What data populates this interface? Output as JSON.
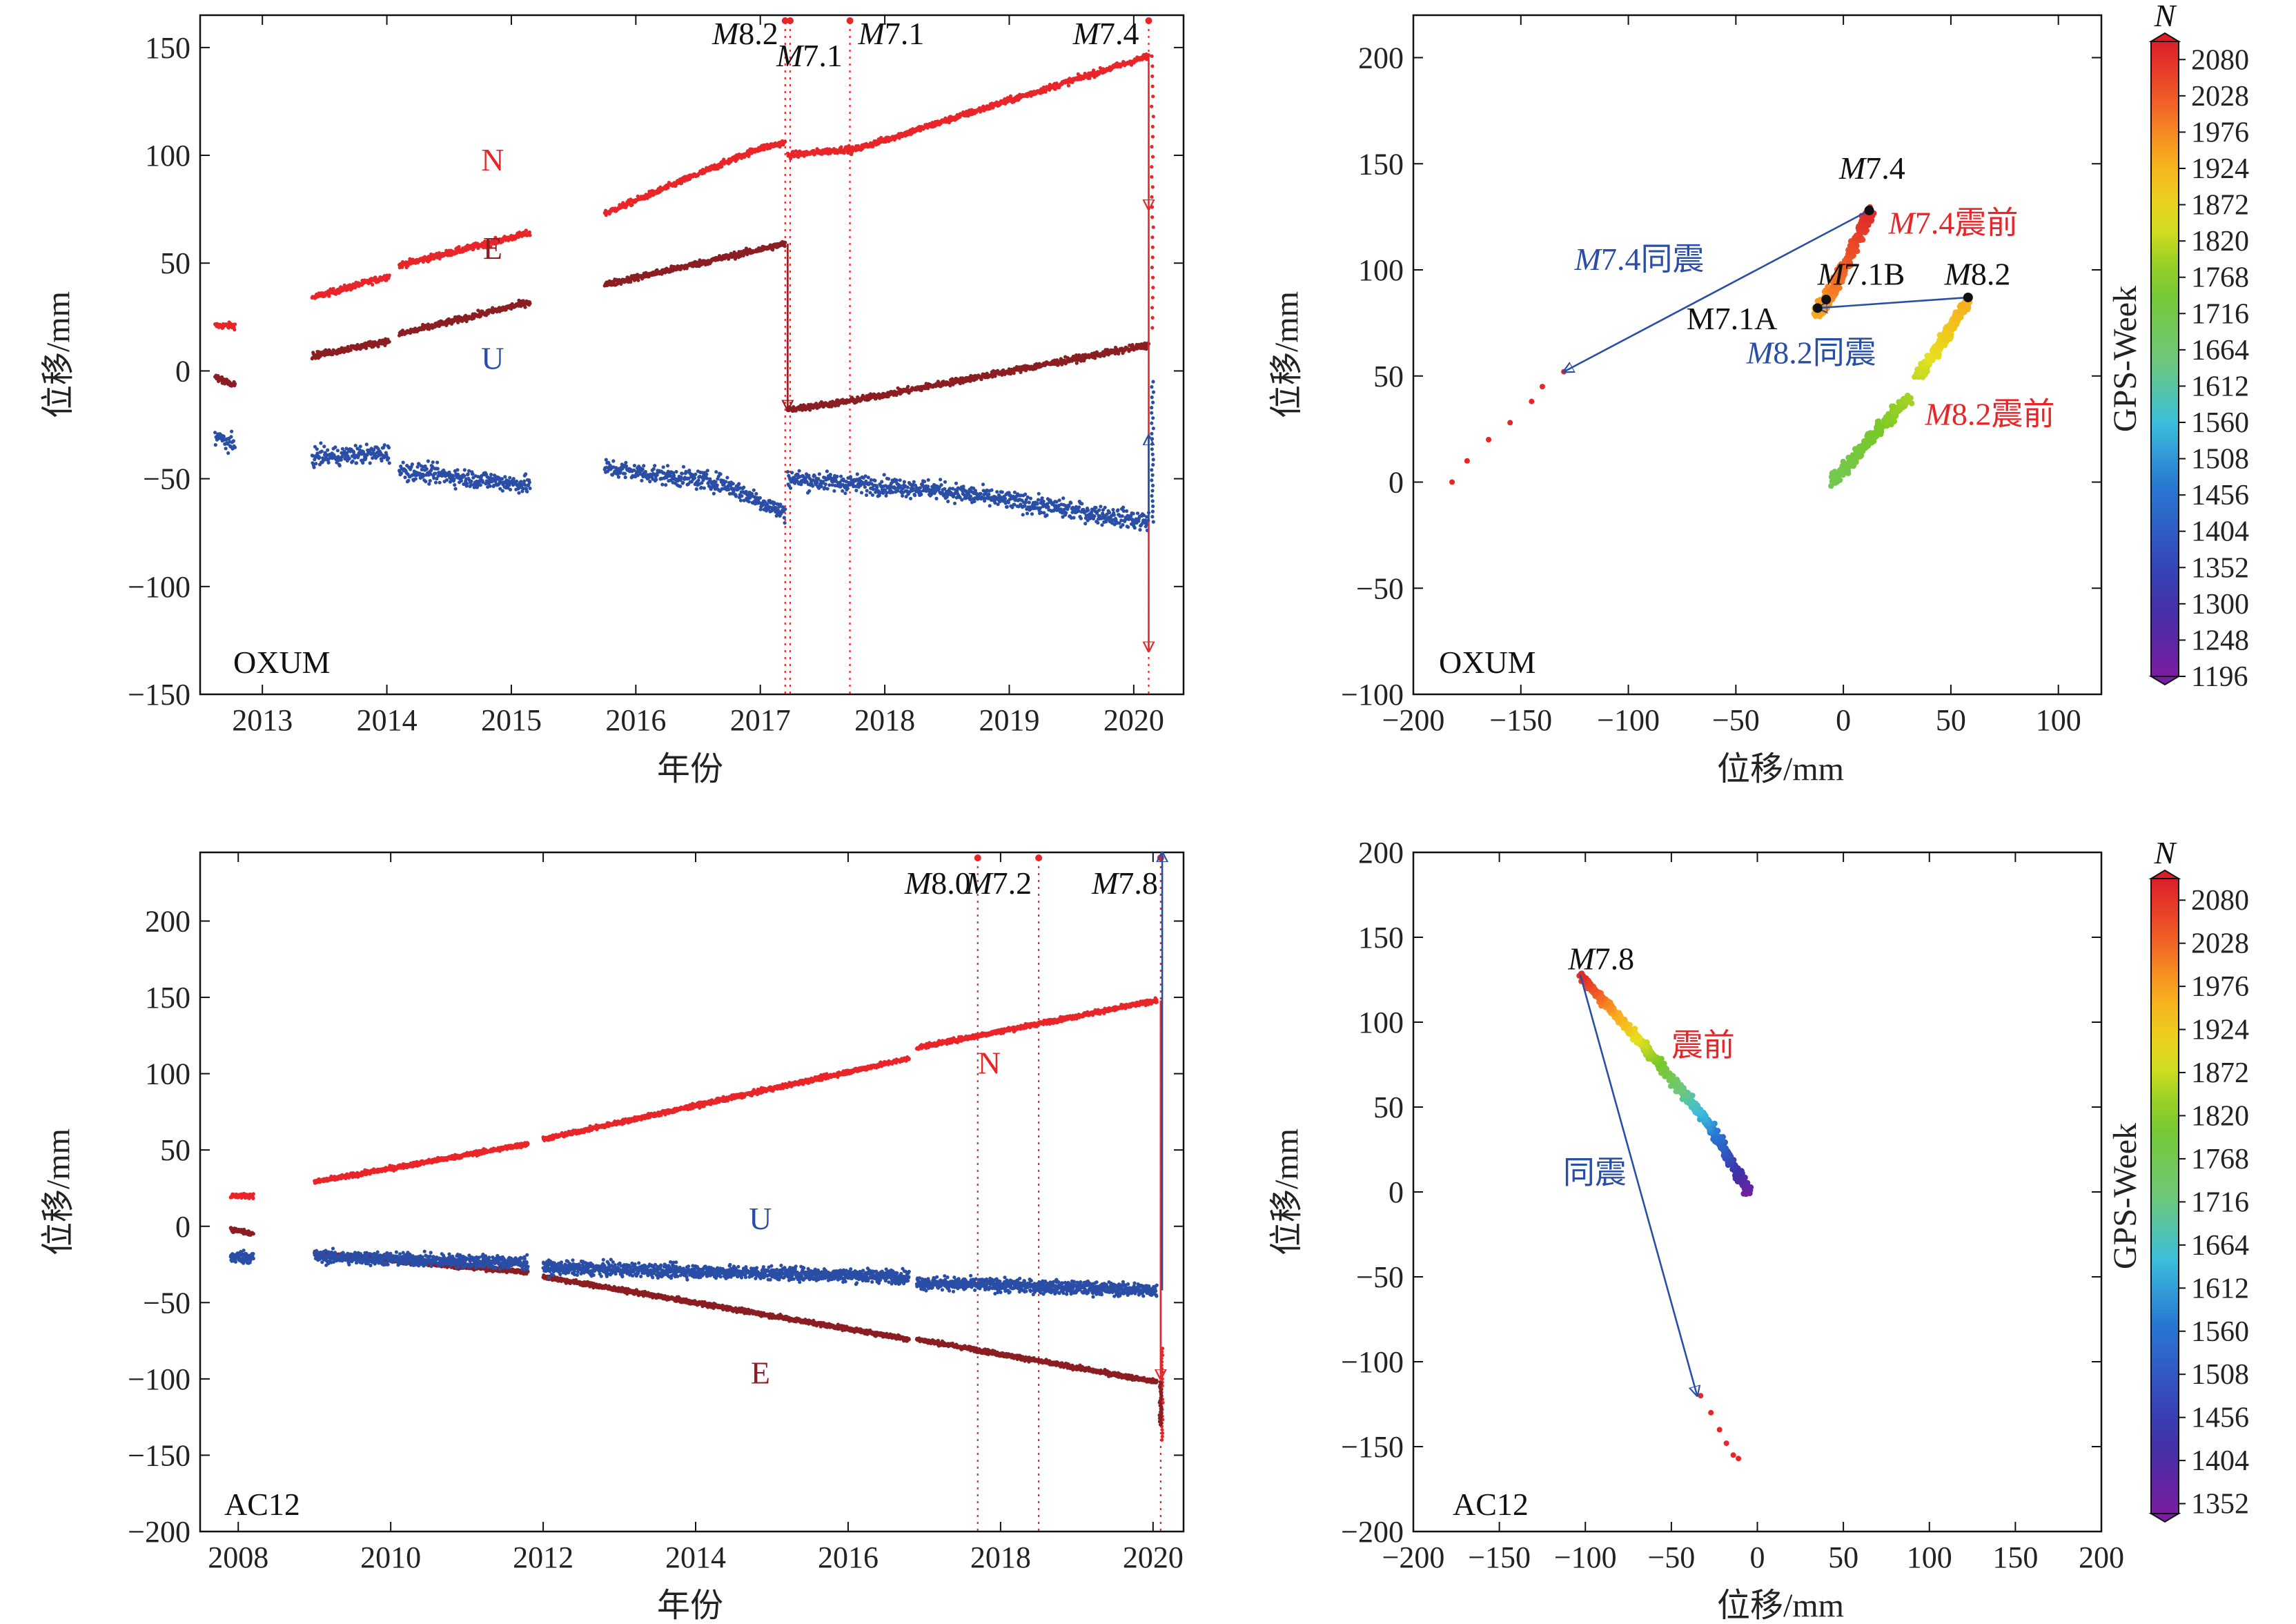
{
  "colors": {
    "N": "#e8262a",
    "E": "#8b1e22",
    "U": "#2a4ea6",
    "anno_black": "#111111",
    "anno_red": "#e8262a",
    "anno_blue": "#2a4ea6"
  },
  "chart_data": [
    {
      "id": "oxum-ts",
      "type": "scatter",
      "station": "OXUM",
      "xlabel": "年份",
      "ylabel": "位移/mm",
      "xlim": [
        2012.5,
        2020.4
      ],
      "ylim": [
        -150,
        165
      ],
      "xticks": [
        2013,
        2014,
        2015,
        2016,
        2017,
        2018,
        2019,
        2020
      ],
      "yticks": [
        -150,
        -100,
        -50,
        0,
        50,
        100,
        150
      ],
      "ytick_labels": [
        "−150",
        "−100",
        "−50",
        "0",
        "50",
        "100",
        "150"
      ],
      "series": [
        {
          "key": "N",
          "name": "N",
          "segments": [
            {
              "x0": 2012.62,
              "x1": 2012.78,
              "y0": 21,
              "y1": 21
            },
            {
              "x0": 2013.4,
              "x1": 2014.02,
              "y0": 34,
              "y1": 44
            },
            {
              "x0": 2014.1,
              "x1": 2015.15,
              "y0": 49,
              "y1": 64
            },
            {
              "x0": 2015.75,
              "x1": 2016.98,
              "y0": 73,
              "y1": 103
            },
            {
              "x0": 2016.98,
              "x1": 2017.2,
              "y0": 103,
              "y1": 106
            },
            {
              "x0": 2017.22,
              "x1": 2017.72,
              "y0": 100,
              "y1": 103
            },
            {
              "x0": 2017.72,
              "x1": 2020.12,
              "y0": 102,
              "y1": 146
            }
          ]
        },
        {
          "key": "E",
          "name": "E",
          "segments": [
            {
              "x0": 2012.62,
              "x1": 2012.78,
              "y0": -3,
              "y1": -6
            },
            {
              "x0": 2013.4,
              "x1": 2014.02,
              "y0": 7,
              "y1": 14
            },
            {
              "x0": 2014.1,
              "x1": 2015.15,
              "y0": 17,
              "y1": 32
            },
            {
              "x0": 2015.75,
              "x1": 2017.2,
              "y0": 40,
              "y1": 59
            },
            {
              "x0": 2017.22,
              "x1": 2017.72,
              "y0": -18,
              "y1": -14
            },
            {
              "x0": 2017.72,
              "x1": 2020.12,
              "y0": -14,
              "y1": 12
            }
          ]
        },
        {
          "key": "U",
          "name": "U",
          "segments": [
            {
              "x0": 2012.62,
              "x1": 2012.78,
              "y0": -30,
              "y1": -35
            },
            {
              "x0": 2013.4,
              "x1": 2014.02,
              "y0": -40,
              "y1": -38
            },
            {
              "x0": 2014.1,
              "x1": 2015.15,
              "y0": -46,
              "y1": -53
            },
            {
              "x0": 2015.75,
              "x1": 2016.7,
              "y0": -45,
              "y1": -52
            },
            {
              "x0": 2016.7,
              "x1": 2017.2,
              "y0": -52,
              "y1": -66
            },
            {
              "x0": 2017.22,
              "x1": 2018.4,
              "y0": -50,
              "y1": -55
            },
            {
              "x0": 2018.4,
              "x1": 2020.12,
              "y0": -55,
              "y1": -70
            }
          ]
        }
      ],
      "tails": [
        {
          "key": "N",
          "x": 2020.15,
          "y0": 146,
          "y1": 20
        },
        {
          "key": "U",
          "x": 2020.15,
          "y0": -70,
          "y1": -5
        }
      ],
      "events": [
        {
          "x": 2017.2,
          "mag": "8.2"
        },
        {
          "x": 2017.24,
          "mag": "7.1"
        },
        {
          "x": 2017.72,
          "mag": "7.1"
        },
        {
          "x": 2020.12,
          "mag": "7.4"
        }
      ],
      "offsets": [
        {
          "key": "N",
          "x": 2020.12,
          "from": 146,
          "to": 75
        },
        {
          "key": "N",
          "x": 2020.12,
          "from": 75,
          "to": -130
        },
        {
          "key": "U",
          "x": 2020.12,
          "from": -70,
          "to": -30
        },
        {
          "key": "E",
          "x": 2017.22,
          "from": 59,
          "to": -18
        }
      ],
      "labels": [
        {
          "key": "N",
          "text": "N",
          "x": 2014.85,
          "y": 93
        },
        {
          "key": "E",
          "text": "E",
          "x": 2014.85,
          "y": 52
        },
        {
          "key": "U",
          "text": "U",
          "x": 2014.85,
          "y": 1
        }
      ]
    },
    {
      "id": "oxum-traj",
      "type": "scatter",
      "station": "OXUM",
      "xlabel": "位移/mm",
      "ylabel": "位移/mm",
      "xlim": [
        -200,
        120
      ],
      "ylim": [
        -100,
        220
      ],
      "xticks": [
        -200,
        -150,
        -100,
        -50,
        0,
        50,
        100
      ],
      "xtick_labels": [
        "−200",
        "−150",
        "−100",
        "−50",
        "0",
        "50",
        "100"
      ],
      "yticks": [
        -100,
        -50,
        0,
        50,
        100,
        150,
        200
      ],
      "ytick_labels": [
        "−100",
        "−50",
        "0",
        "50",
        "100",
        "150",
        "200"
      ],
      "clusters": [
        {
          "x0": -5,
          "y0": 0,
          "x1": 30,
          "y1": 40,
          "c0": 1700,
          "c1": 1795
        },
        {
          "x0": 35,
          "y0": 50,
          "x1": 58,
          "y1": 85,
          "c0": 1820,
          "c1": 1935
        },
        {
          "x0": -12,
          "y0": 80,
          "x1": -5,
          "y1": 90,
          "c0": 1940,
          "c1": 1980
        },
        {
          "x0": -5,
          "y0": 90,
          "x1": 13,
          "y1": 128,
          "c0": 1985,
          "c1": 2090
        }
      ],
      "postseismic": [
        [
          -182,
          0
        ],
        [
          -175,
          10
        ],
        [
          -165,
          20
        ],
        [
          -155,
          28
        ],
        [
          -145,
          38
        ],
        [
          -140,
          45
        ],
        [
          -130,
          52
        ]
      ],
      "markers": [
        [
          12,
          128
        ],
        [
          58,
          87
        ],
        [
          -12,
          82
        ],
        [
          -8,
          86
        ]
      ],
      "arrows": [
        {
          "key": "N",
          "from": [
            12,
            128
          ],
          "to": [
            -130,
            52
          ]
        },
        {
          "key": "U",
          "from": [
            58,
            87
          ],
          "to": [
            -12,
            82
          ]
        }
      ],
      "annotations": [
        {
          "prefix": "M",
          "text": "7.4",
          "color": "anno_black",
          "x": -2,
          "y": 143
        },
        {
          "prefix": "M",
          "text": "7.4震前",
          "color": "anno_red",
          "x": 21,
          "y": 117
        },
        {
          "prefix": "M",
          "text": "7.4同震",
          "color": "anno_blue",
          "x": -125,
          "y": 100
        },
        {
          "prefix": "M",
          "text": "7.1B",
          "color": "anno_black",
          "x": -12,
          "y": 93
        },
        {
          "prefix": "M",
          "text": "8.2",
          "color": "anno_black",
          "x": 47,
          "y": 93
        },
        {
          "prefix": "",
          "text": "M7.1A",
          "color": "anno_black",
          "x": -73,
          "y": 72
        },
        {
          "prefix": "M",
          "text": "8.2同震",
          "color": "anno_blue",
          "x": -45,
          "y": 56
        },
        {
          "prefix": "M",
          "text": "8.2震前",
          "color": "anno_red",
          "x": 38,
          "y": 27
        }
      ]
    },
    {
      "id": "ac12-ts",
      "type": "scatter",
      "station": "AC12",
      "xlabel": "年份",
      "ylabel": "位移/mm",
      "xlim": [
        2007.5,
        2020.4
      ],
      "ylim": [
        -200,
        245
      ],
      "xticks": [
        2008,
        2010,
        2012,
        2014,
        2016,
        2018,
        2020
      ],
      "yticks": [
        -200,
        -150,
        -100,
        -50,
        0,
        50,
        100,
        150,
        200
      ],
      "ytick_labels": [
        "−200",
        "−150",
        "−100",
        "−50",
        "0",
        "50",
        "100",
        "150",
        "200"
      ],
      "series": [
        {
          "key": "N",
          "name": "N",
          "segments": [
            {
              "x0": 2007.9,
              "x1": 2008.2,
              "y0": 20,
              "y1": 20
            },
            {
              "x0": 2009.0,
              "x1": 2011.8,
              "y0": 29,
              "y1": 54
            },
            {
              "x0": 2012.0,
              "x1": 2016.8,
              "y0": 57,
              "y1": 110
            },
            {
              "x0": 2016.9,
              "x1": 2020.05,
              "y0": 117,
              "y1": 148
            }
          ]
        },
        {
          "key": "E",
          "name": "E",
          "segments": [
            {
              "x0": 2007.9,
              "x1": 2008.2,
              "y0": -2,
              "y1": -5
            },
            {
              "x0": 2009.0,
              "x1": 2011.8,
              "y0": -18,
              "y1": -30
            },
            {
              "x0": 2012.0,
              "x1": 2016.8,
              "y0": -33,
              "y1": -74
            },
            {
              "x0": 2016.9,
              "x1": 2020.05,
              "y0": -74,
              "y1": -102
            }
          ]
        },
        {
          "key": "U",
          "name": "U",
          "segments": [
            {
              "x0": 2007.9,
              "x1": 2008.2,
              "y0": -20,
              "y1": -20
            },
            {
              "x0": 2009.0,
              "x1": 2011.8,
              "y0": -20,
              "y1": -24
            },
            {
              "x0": 2012.0,
              "x1": 2016.8,
              "y0": -27,
              "y1": -33
            },
            {
              "x0": 2016.9,
              "x1": 2020.05,
              "y0": -37,
              "y1": -42
            }
          ]
        }
      ],
      "tails": [
        {
          "key": "N",
          "x": 2020.12,
          "y0": -80,
          "y1": -140
        },
        {
          "key": "E",
          "x": 2020.1,
          "y0": -102,
          "y1": -130
        }
      ],
      "events": [
        {
          "x": 2017.7,
          "mag": "8.0"
        },
        {
          "x": 2018.5,
          "mag": "7.2"
        },
        {
          "x": 2020.1,
          "mag": "7.8"
        }
      ],
      "offsets": [
        {
          "key": "N",
          "x": 2020.1,
          "from": 148,
          "to": -100
        },
        {
          "key": "U",
          "x": 2020.12,
          "from": -42,
          "to": 245
        }
      ],
      "labels": [
        {
          "key": "N",
          "text": "N",
          "x": 2017.85,
          "y": 100
        },
        {
          "key": "U",
          "text": "U",
          "x": 2014.85,
          "y": -2
        },
        {
          "key": "E",
          "text": "E",
          "x": 2014.85,
          "y": -103
        }
      ]
    },
    {
      "id": "ac12-traj",
      "type": "scatter",
      "station": "AC12",
      "xlabel": "位移/mm",
      "ylabel": "位移/mm",
      "xlim": [
        -200,
        200
      ],
      "ylim": [
        -200,
        200
      ],
      "xticks": [
        -200,
        -150,
        -100,
        -50,
        0,
        50,
        100,
        150,
        200
      ],
      "xtick_labels": [
        "−200",
        "−150",
        "−100",
        "−50",
        "0",
        "50",
        "100",
        "150",
        "200"
      ],
      "yticks": [
        -200,
        -150,
        -100,
        -50,
        0,
        50,
        100,
        150,
        200
      ],
      "ytick_labels": [
        "−200",
        "−150",
        "−100",
        "−50",
        "0",
        "50",
        "100",
        "150",
        "200"
      ],
      "clusters": [
        {
          "x0": -5,
          "y0": 0,
          "x1": -28,
          "y1": 40,
          "c0": 1350,
          "c1": 1600
        },
        {
          "x0": -28,
          "y0": 40,
          "x1": -65,
          "y1": 85,
          "c0": 1600,
          "c1": 1860
        },
        {
          "x0": -65,
          "y0": 85,
          "x1": -103,
          "y1": 128,
          "c0": 1860,
          "c1": 2090
        }
      ],
      "postseismic": [
        [
          -33,
          -120
        ],
        [
          -27,
          -130
        ],
        [
          -22,
          -140
        ],
        [
          -18,
          -148
        ],
        [
          -14,
          -155
        ],
        [
          -11,
          -157
        ]
      ],
      "markers": [],
      "arrows": [
        {
          "key": "U",
          "from": [
            -103,
            128
          ],
          "to": [
            -35,
            -120
          ]
        }
      ],
      "annotations": [
        {
          "prefix": "M",
          "text": "7.8",
          "color": "anno_black",
          "x": -110,
          "y": 131
        },
        {
          "prefix": "",
          "text": "震前",
          "color": "anno_red",
          "x": -50,
          "y": 80
        },
        {
          "prefix": "",
          "text": "同震",
          "color": "anno_blue",
          "x": -113,
          "y": 5
        }
      ]
    }
  ],
  "colorbars": [
    {
      "id": "cb-oxum",
      "title": "N",
      "label": "GPS-Week",
      "min": 1196,
      "max": 2106,
      "ticks": [
        1196,
        1248,
        1300,
        1352,
        1404,
        1456,
        1508,
        1560,
        1612,
        1664,
        1716,
        1768,
        1820,
        1872,
        1924,
        1976,
        2028,
        2080
      ]
    },
    {
      "id": "cb-ac12",
      "title": "N",
      "label": "GPS-Week",
      "min": 1340,
      "max": 2106,
      "ticks": [
        1352,
        1404,
        1456,
        1508,
        1560,
        1612,
        1664,
        1716,
        1768,
        1820,
        1872,
        1924,
        1976,
        2028,
        2080
      ]
    }
  ]
}
